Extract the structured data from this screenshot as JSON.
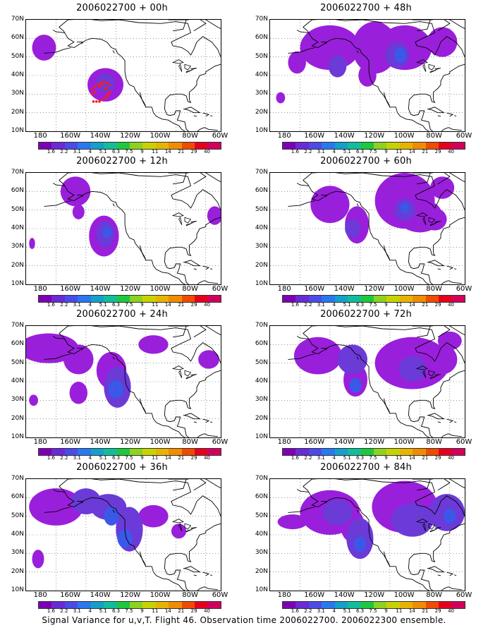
{
  "caption": "Signal Variance for u,v,T. Flight 46. Observation time 2006022700. 2006022300 ensemble.",
  "lat_labels": [
    "70N",
    "60N",
    "50N",
    "40N",
    "30N",
    "20N",
    "10N"
  ],
  "lon_labels": [
    "180",
    "160W",
    "140W",
    "120W",
    "100W",
    "80W",
    "60W"
  ],
  "colorbar": {
    "labels": [
      "1.6",
      "2.2",
      "3.1",
      "4",
      "5.1",
      "6.3",
      "7.5",
      "9",
      "11",
      "14",
      "21",
      "29",
      "40"
    ],
    "colors": [
      "#7d00b4",
      "#6a2ad6",
      "#4b4bea",
      "#2a78f0",
      "#14a0c8",
      "#10be9c",
      "#1ec83c",
      "#8cd21e",
      "#c8d200",
      "#e6b400",
      "#f08c00",
      "#f04b00",
      "#e6001e",
      "#d2005a"
    ]
  },
  "panels": [
    {
      "title": "2006022700 + 00h"
    },
    {
      "title": "2006022700 + 48h"
    },
    {
      "title": "2006022700 + 12h"
    },
    {
      "title": "2006022700 + 60h"
    },
    {
      "title": "2006022700 + 24h"
    },
    {
      "title": "2006022700 + 72h"
    },
    {
      "title": "2006022700 + 36h"
    },
    {
      "title": "2006022700 + 84h"
    }
  ],
  "observation_points": [
    [
      -146,
      33
    ],
    [
      -144,
      34
    ],
    [
      -142,
      35
    ],
    [
      -140,
      36
    ],
    [
      -138,
      36.5
    ],
    [
      -136,
      36
    ],
    [
      -134,
      35
    ],
    [
      -146,
      30
    ],
    [
      -144,
      31
    ],
    [
      -141,
      34
    ],
    [
      -137,
      33
    ],
    [
      -135,
      30
    ],
    [
      -137,
      28
    ],
    [
      -139,
      27
    ],
    [
      -141,
      26
    ],
    [
      -143,
      26
    ],
    [
      -145,
      26
    ],
    [
      -139,
      35
    ],
    [
      -136,
      33
    ],
    [
      -134,
      31
    ],
    [
      -136,
      29
    ]
  ]
}
